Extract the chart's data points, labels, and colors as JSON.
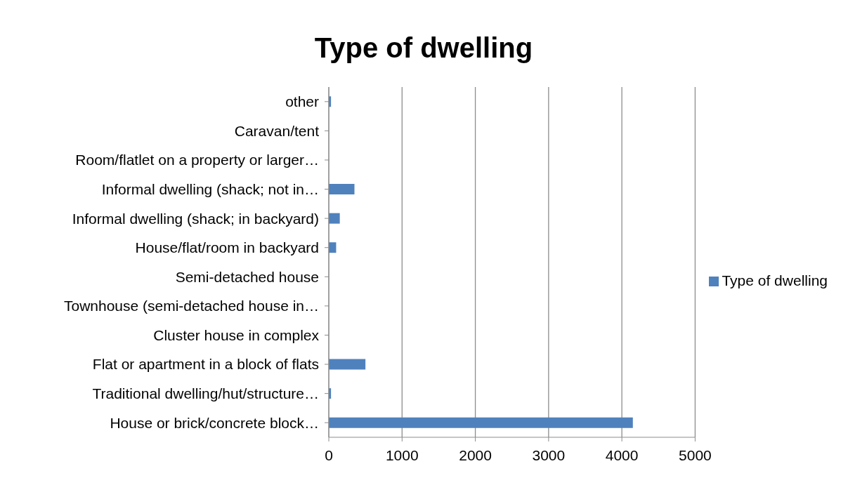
{
  "chart_data": {
    "type": "bar",
    "orientation": "horizontal",
    "title": "Type of dwelling",
    "categories": [
      "other",
      "Caravan/tent",
      "Room/flatlet on a property or larger…",
      "Informal dwelling (shack; not in…",
      "Informal dwelling (shack; in backyard)",
      "House/flat/room in backyard",
      "Semi-detached house",
      "Townhouse (semi-detached house in…",
      "Cluster house in complex",
      "Flat or apartment in a block of flats",
      "Traditional dwelling/hut/structure…",
      "House or brick/concrete block…"
    ],
    "series": [
      {
        "name": "Type of dwelling",
        "color": "#4f81bd",
        "values": [
          30,
          0,
          0,
          350,
          150,
          100,
          0,
          0,
          0,
          500,
          30,
          4150
        ]
      }
    ],
    "xlim": [
      0,
      5000
    ],
    "xticks": [
      0,
      1000,
      2000,
      3000,
      4000,
      5000
    ],
    "grid": "x",
    "legend": "right"
  }
}
